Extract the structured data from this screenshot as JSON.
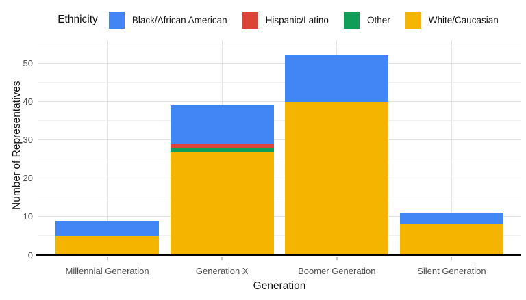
{
  "chart_data": {
    "type": "bar",
    "stacked": true,
    "legend_title": "Ethnicity",
    "xlabel": "Generation",
    "ylabel": "Number of Representatives",
    "categories": [
      "Millennial Generation",
      "Generation X",
      "Boomer Generation",
      "Silent Generation"
    ],
    "series": [
      {
        "name": "White/Caucasian",
        "color": "#F4B400",
        "values": [
          5,
          27,
          40,
          8
        ]
      },
      {
        "name": "Other",
        "color": "#0F9D58",
        "values": [
          0,
          1,
          0,
          0
        ]
      },
      {
        "name": "Hispanic/Latino",
        "color": "#DB4437",
        "values": [
          0,
          1,
          0,
          0
        ]
      },
      {
        "name": "Black/African American",
        "color": "#4285F4",
        "values": [
          4,
          10,
          12,
          3
        ]
      }
    ],
    "totals": [
      9,
      39,
      52,
      11
    ],
    "legend_order": [
      "Black/African American",
      "Hispanic/Latino",
      "Other",
      "White/Caucasian"
    ],
    "yticks": [
      0,
      10,
      20,
      30,
      40,
      50
    ],
    "ylim": [
      0,
      56
    ],
    "grid": {
      "major_every": 10,
      "minor_every": 5,
      "max_line": 55
    },
    "legend_position": "top",
    "background": "#ffffff"
  }
}
